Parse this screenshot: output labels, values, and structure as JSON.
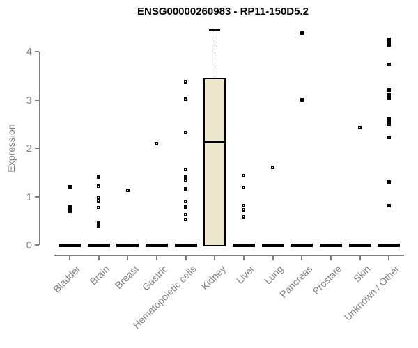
{
  "chart": {
    "title": "ENSG00000260983 - RP11-150D5.2",
    "ylabel": "Expression"
  },
  "chart_data": {
    "type": "boxplot",
    "title": "ENSG00000260983 - RP11-150D5.2",
    "xlabel": "",
    "ylabel": "Expression",
    "ylim": [
      0,
      4.5
    ],
    "yticks": [
      0,
      1,
      2,
      3,
      4
    ],
    "grid": false,
    "legend": null,
    "colors": {
      "box_fill": "#ECE7CD",
      "box_border": "#000000",
      "median": "#000000",
      "point": "#000000",
      "axis": "#7f7f7f",
      "tick_label": "#7f7f7f",
      "title": "#000000"
    },
    "categories": [
      "Bladder",
      "Brain",
      "Breast",
      "Gastric",
      "Hematopoietic cells",
      "Kidney",
      "Liver",
      "Lung",
      "Pancreas",
      "Prostate",
      "Skin",
      "Unknown / Other"
    ],
    "series": [
      {
        "name": "Bladder",
        "box": {
          "min": 0,
          "q1": 0,
          "median": 0,
          "q3": 0,
          "max": 0
        },
        "points": [
          1.2,
          0.78,
          0.7
        ]
      },
      {
        "name": "Brain",
        "box": {
          "min": 0,
          "q1": 0,
          "median": 0,
          "q3": 0,
          "max": 0
        },
        "points": [
          1.4,
          1.22,
          0.98,
          0.91,
          0.77,
          0.45,
          0.4
        ]
      },
      {
        "name": "Breast",
        "box": {
          "min": 0,
          "q1": 0,
          "median": 0,
          "q3": 0,
          "max": 0
        },
        "points": [
          1.13
        ]
      },
      {
        "name": "Gastric",
        "box": {
          "min": 0,
          "q1": 0,
          "median": 0,
          "q3": 0,
          "max": 0
        },
        "points": [
          2.1
        ]
      },
      {
        "name": "Hematopoietic cells",
        "box": {
          "min": 0,
          "q1": 0,
          "median": 0,
          "q3": 0,
          "max": 0
        },
        "points": [
          3.37,
          3.02,
          2.33,
          1.56,
          1.41,
          1.33,
          1.16,
          0.9,
          0.78,
          0.62,
          0.52
        ]
      },
      {
        "name": "Kidney",
        "box": {
          "min": 0,
          "q1": 0,
          "median": 2.13,
          "q3": 3.45,
          "max": 4.45
        },
        "points": []
      },
      {
        "name": "Liver",
        "box": {
          "min": 0,
          "q1": 0,
          "median": 0,
          "q3": 0,
          "max": 0
        },
        "points": [
          1.43,
          1.19,
          0.82,
          0.73,
          0.58
        ]
      },
      {
        "name": "Lung",
        "box": {
          "min": 0,
          "q1": 0,
          "median": 0,
          "q3": 0,
          "max": 0
        },
        "points": [
          1.6
        ]
      },
      {
        "name": "Pancreas",
        "box": {
          "min": 0,
          "q1": 0,
          "median": 0,
          "q3": 0,
          "max": 0
        },
        "points": [
          4.38,
          3.0
        ]
      },
      {
        "name": "Prostate",
        "box": {
          "min": 0,
          "q1": 0,
          "median": 0,
          "q3": 0,
          "max": 0
        },
        "points": []
      },
      {
        "name": "Skin",
        "box": {
          "min": 0,
          "q1": 0,
          "median": 0,
          "q3": 0,
          "max": 0
        },
        "points": [
          2.43
        ]
      },
      {
        "name": "Unknown / Other",
        "box": {
          "min": 0,
          "q1": 0,
          "median": 0,
          "q3": 0,
          "max": 0
        },
        "points": [
          4.25,
          4.19,
          4.13,
          3.73,
          3.2,
          3.1,
          3.03,
          2.61,
          2.55,
          2.49,
          2.23,
          1.3,
          0.82
        ]
      }
    ]
  }
}
